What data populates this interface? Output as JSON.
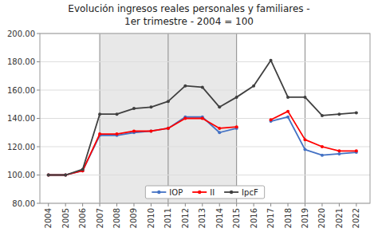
{
  "chart_data": {
    "type": "line",
    "title": "Evolución ingresos reales personales y familiares -",
    "subtitle": "1er trimestre - 2004 = 100",
    "x": [
      2004,
      2005,
      2006,
      2007,
      2008,
      2009,
      2010,
      2011,
      2012,
      2013,
      2014,
      2015,
      2016,
      2017,
      2018,
      2019,
      2020,
      2021,
      2022
    ],
    "series": [
      {
        "name": "IOP",
        "color": "#4472C4",
        "marker": "circle",
        "values": [
          100,
          100,
          103,
          128,
          128,
          130,
          131,
          133,
          141,
          141,
          130,
          133,
          null,
          138,
          141,
          118,
          114,
          115,
          116
        ]
      },
      {
        "name": "II",
        "color": "#FF0000",
        "marker": "circle",
        "values": [
          100,
          100,
          103,
          129,
          129,
          131,
          131,
          133,
          140,
          140,
          133,
          134,
          null,
          139,
          145,
          125,
          120,
          117,
          117
        ]
      },
      {
        "name": "IpcF",
        "color": "#404040",
        "marker": "circle",
        "values": [
          100,
          100,
          104,
          143,
          143,
          147,
          148,
          152,
          163,
          162,
          148,
          155,
          163,
          181,
          155,
          155,
          142,
          143,
          144
        ]
      }
    ],
    "xlim": [
      2003.5,
      2022.8
    ],
    "xticks": [
      2004,
      2005,
      2006,
      2007,
      2008,
      2009,
      2010,
      2011,
      2012,
      2013,
      2014,
      2015,
      2016,
      2017,
      2018,
      2019,
      2020,
      2021,
      2022
    ],
    "ylim": [
      80,
      200
    ],
    "yticks": [
      {
        "value": 80,
        "label": "80.00"
      },
      {
        "value": 100,
        "label": "100.00"
      },
      {
        "value": 120,
        "label": "120.00"
      },
      {
        "value": 140,
        "label": "140.00"
      },
      {
        "value": 160,
        "label": "160.00"
      },
      {
        "value": 180,
        "label": "180.00"
      },
      {
        "value": 200,
        "label": "200.00"
      }
    ],
    "shaded_region": [
      2007,
      2015
    ],
    "vertical_lines": [
      2007,
      2011,
      2015,
      2019
    ],
    "grid": true,
    "legend": "lower center"
  }
}
